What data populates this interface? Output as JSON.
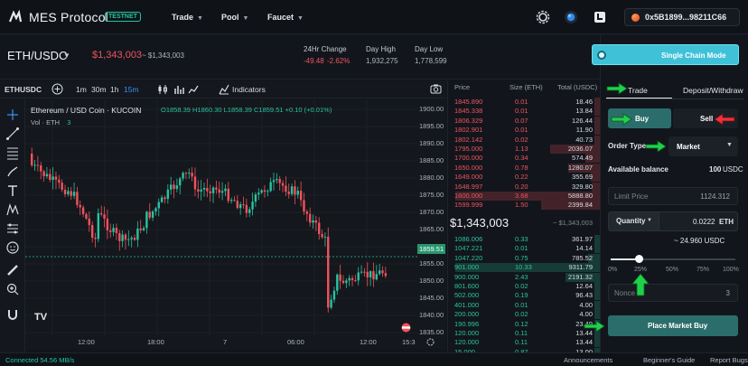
{
  "app": {
    "brand": "MES Protocol",
    "badge": "TESTNET",
    "nav": [
      {
        "label": "Trade"
      },
      {
        "label": "Pool"
      },
      {
        "label": "Faucet"
      }
    ],
    "wallet_address": "0x5B1899...98211C66"
  },
  "ticker": {
    "pair": "ETH/USDC",
    "price": "$1,343,003",
    "price_sub": "~ $1,343,003",
    "stats": [
      {
        "label": "24Hr Change",
        "value_a": "-49.48",
        "value_b": "-2.62%"
      },
      {
        "label": "Day High",
        "value_a": "1,932,275"
      },
      {
        "label": "Day Low",
        "value_a": "1,778,599"
      }
    ]
  },
  "chart_toolbar": {
    "symbol": "ETHUSDC",
    "intervals": [
      "1m",
      "30m",
      "1h",
      "15m"
    ],
    "active_interval": "15m",
    "indicators_label": "Indicators"
  },
  "chart": {
    "title": "Ethereum / USD Coin · KUCOIN",
    "ohlc": "O1858.39 H1860.30 L1858.39 C1859.51 +0.10 (+0.01%)",
    "vol_label": "Vol · ETH",
    "vol_value": "3",
    "price_labels": [
      "1900.00",
      "1895.00",
      "1890.00",
      "1885.00",
      "1880.00",
      "1875.00",
      "1870.00",
      "1865.00",
      "1860.00",
      "1855.00",
      "1850.00",
      "1845.00",
      "1840.00",
      "1835.00"
    ],
    "current_price_label": "1859.51",
    "time_labels": [
      "12:00",
      "18:00",
      "7",
      "06:00",
      "12:00",
      "15:3"
    ],
    "logo_text": "TV",
    "colors": {
      "up": "#27c3a0",
      "down": "#f0535d"
    }
  },
  "orderbook": {
    "headers": {
      "price": "Price",
      "size": "Size (ETH)",
      "total": "Total (USDC)"
    },
    "asks": [
      {
        "price": "1845.890",
        "size": "0.01",
        "total": "18.46"
      },
      {
        "price": "1845.338",
        "size": "0.01",
        "total": "13.84"
      },
      {
        "price": "1806.329",
        "size": "0.07",
        "total": "126.44"
      },
      {
        "price": "1802.901",
        "size": "0.01",
        "total": "11.90"
      },
      {
        "price": "1802.142",
        "size": "0.02",
        "total": "40.73"
      },
      {
        "price": "1795.000",
        "size": "1.13",
        "total": "2036.07"
      },
      {
        "price": "1700.000",
        "size": "0.34",
        "total": "574.49"
      },
      {
        "price": "1650.000",
        "size": "0.78",
        "total": "1280.07"
      },
      {
        "price": "1649.000",
        "size": "0.22",
        "total": "355.69"
      },
      {
        "price": "1648.997",
        "size": "0.20",
        "total": "329.80"
      },
      {
        "price": "1600.000",
        "size": "3.68",
        "total": "5888.80"
      },
      {
        "price": "1599.999",
        "size": "1.50",
        "total": "2399.84"
      }
    ],
    "mid_price": "$1,343,003",
    "mid_sub": "~ $1,343,003",
    "bids": [
      {
        "price": "1086.006",
        "size": "0.33",
        "total": "361.97"
      },
      {
        "price": "1047.221",
        "size": "0.01",
        "total": "14.14"
      },
      {
        "price": "1047.220",
        "size": "0.75",
        "total": "785.52"
      },
      {
        "price": "901.000",
        "size": "10.33",
        "total": "9311.79"
      },
      {
        "price": "900.000",
        "size": "2.43",
        "total": "2191.32"
      },
      {
        "price": "801.600",
        "size": "0.02",
        "total": "12.64"
      },
      {
        "price": "502.000",
        "size": "0.19",
        "total": "96.43"
      },
      {
        "price": "401.000",
        "size": "0.01",
        "total": "4.00"
      },
      {
        "price": "200.000",
        "size": "0.02",
        "total": "4.00"
      },
      {
        "price": "190.996",
        "size": "0.12",
        "total": "23.49"
      },
      {
        "price": "120.000",
        "size": "0.11",
        "total": "13.44"
      },
      {
        "price": "120.000",
        "size": "0.11",
        "total": "13.44"
      },
      {
        "price": "15.000",
        "size": "0.87",
        "total": "13.00"
      }
    ]
  },
  "trade": {
    "single_chain_label": "Single Chain Mode",
    "tabs": [
      "Trade",
      "Deposit/Withdraw"
    ],
    "buy_label": "Buy",
    "sell_label": "Sell",
    "order_type_label": "Order Type",
    "order_type_value": "Market",
    "available_label": "Available balance",
    "available_value": "100",
    "available_unit": "USDC",
    "limit_price_label": "Limit Price",
    "limit_price_value": "1124.312",
    "quantity_label": "Quantity",
    "quantity_value": "0.0222",
    "quantity_unit": "ETH",
    "quantity_usd": "~ 24.960 USDC",
    "slider_ticks": [
      "0%",
      "25%",
      "50%",
      "75%",
      "100%"
    ],
    "slider_fraction": 0.25,
    "nonce_label": "Nonce",
    "nonce_value": "3",
    "place_label": "Place Market Buy"
  },
  "status": {
    "connected": "Connected 54.56 MB/s",
    "links": [
      "Announcements",
      "Beginner's Guide",
      "Report Bugs"
    ]
  }
}
